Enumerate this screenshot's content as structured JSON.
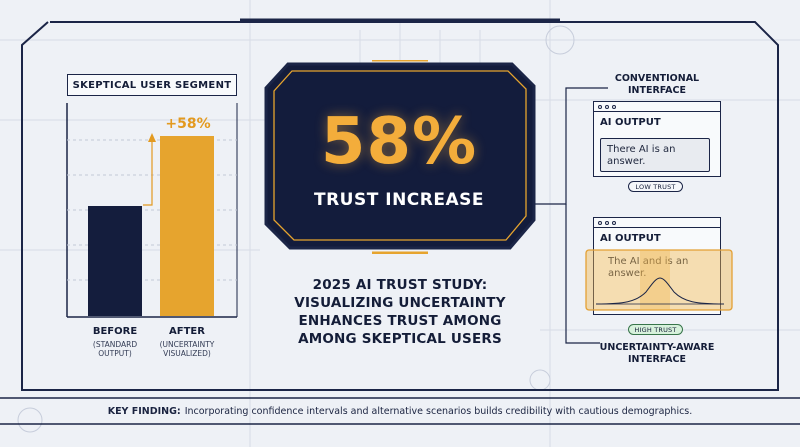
{
  "left_panel": {
    "segment_label": "SKEPTICAL USER SEGMENT",
    "delta_label": "+58%",
    "before": {
      "title": "BEFORE",
      "subtitle_line1": "(STANDARD",
      "subtitle_line2": "OUTPUT)"
    },
    "after": {
      "title": "AFTER",
      "subtitle_line1": "(UNCERTAINTY",
      "subtitle_line2": "VISUALIZED)"
    }
  },
  "chart_data": {
    "type": "bar",
    "categories": [
      "BEFORE",
      "AFTER"
    ],
    "values": [
      100,
      158
    ],
    "annotation": "+58%",
    "title": "SKEPTICAL USER SEGMENT"
  },
  "hero": {
    "big_value": "58%",
    "label": "TRUST INCREASE"
  },
  "headline": {
    "line1": "2025 AI TRUST STUDY:",
    "line2": "VISUALIZING UNCERTAINTY",
    "line3": "ENHANCES TRUST AMONG",
    "line4": "AMONG SKEPTICAL USERS"
  },
  "right_panel": {
    "conventional": {
      "title_line1": "CONVENTIONAL",
      "title_line2": "INTERFACE",
      "window_heading": "AI OUTPUT",
      "answer_line1": "There AI is an",
      "answer_line2": "answer.",
      "trust_badge": "LOW TRUST"
    },
    "uncertainty": {
      "title_line1": "UNCERTAINTY-AWARE",
      "title_line2": "INTERFACE",
      "window_heading": "AI OUTPUT",
      "answer_line1": "The AI and is an",
      "answer_line2": "answer.",
      "trust_badge": "HIGH TRUST"
    }
  },
  "footer": {
    "key_label": "KEY FINDING:",
    "text": "Incorporating confidence intervals and alternative scenarios builds credibility with cautious demographics."
  },
  "colors": {
    "navy": "#141d3d",
    "amber": "#e6a42e",
    "background": "#eef1f6",
    "high_trust": "#d7f1dc"
  }
}
